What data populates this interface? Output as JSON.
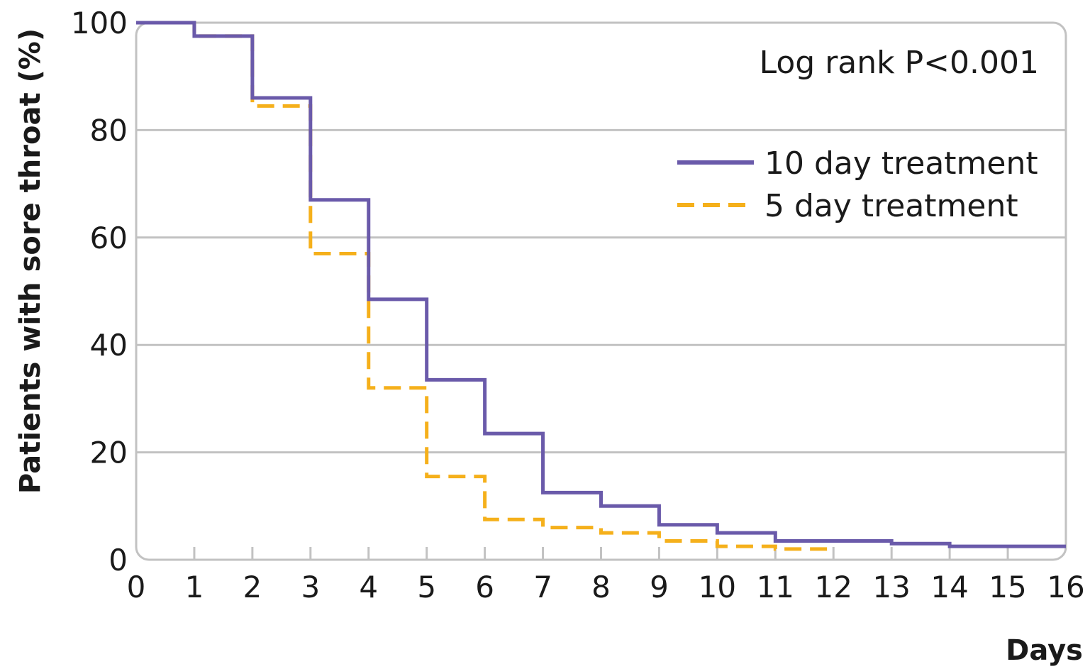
{
  "chart_data": {
    "type": "line",
    "step": true,
    "title": "",
    "xlabel": "Days",
    "ylabel": "Patients with sore throat (%)",
    "xlim": [
      0,
      16
    ],
    "ylim": [
      0,
      100
    ],
    "x_ticks": [
      "0",
      "1",
      "2",
      "3",
      "4",
      "5",
      "6",
      "7",
      "8",
      "9",
      "10",
      "11",
      "12",
      "13",
      "14",
      "15",
      "16"
    ],
    "y_ticks": [
      "0",
      "20",
      "40",
      "60",
      "80",
      "100"
    ],
    "grid": "horizontal",
    "legend_position": "top-right",
    "annotation": "Log rank P<0.001",
    "series": [
      {
        "name": "10 day treatment",
        "color": "#6a5aaa",
        "style": "solid",
        "x": [
          0,
          1,
          2,
          3,
          4,
          5,
          6,
          7,
          8,
          9,
          10,
          11,
          12,
          13,
          14,
          15,
          16
        ],
        "y": [
          100,
          97.5,
          86,
          67,
          48.5,
          33.5,
          23.5,
          12.5,
          10,
          6.5,
          5,
          3.5,
          3.5,
          3,
          2.5,
          2.5,
          2.5
        ]
      },
      {
        "name": "5 day treatment",
        "color": "#f5b01b",
        "style": "dashed",
        "x": [
          0,
          1,
          2,
          3,
          4,
          5,
          6,
          7,
          8,
          9,
          10,
          11,
          12
        ],
        "y": [
          100,
          97.5,
          84.5,
          57,
          32,
          15.5,
          7.5,
          6,
          5,
          3.5,
          2.5,
          2,
          2
        ]
      }
    ]
  }
}
